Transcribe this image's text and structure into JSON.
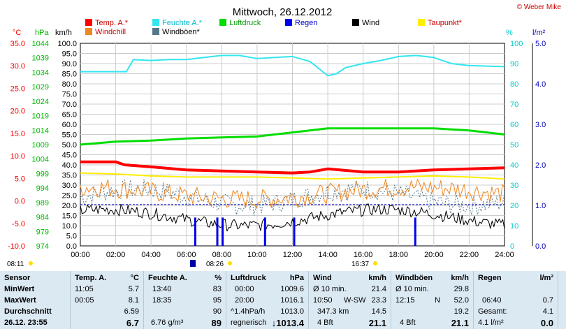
{
  "title": "Mittwoch, 26.12.2012",
  "copyright": "© Weber Mike",
  "colors": {
    "temp": "#ff0000",
    "humidity": "#33e6f0",
    "pressure": "#00dd00",
    "rain": "#0000ee",
    "wind": "#000000",
    "dewpoint": "#ffee00",
    "windchill": "#ee8822",
    "gusts": "#557788",
    "left_axis_temp": "#ff0000",
    "left_axis_hpa": "#00bb00",
    "right_axis": "#00cccc",
    "rain_axis": "#0000bb",
    "table_bg": "#dbe9f3"
  },
  "chart_data": {
    "type": "line",
    "x_ticks": [
      "00:00",
      "02:00",
      "04:00",
      "06:00",
      "08:00",
      "10:00",
      "12:00",
      "14:00",
      "16:00",
      "18:00",
      "20:00",
      "22:00",
      "24:00"
    ],
    "axes": {
      "temp_unit": "°C",
      "temp_ticks": [
        "35.0",
        "30.0",
        "25.0",
        "20.0",
        "15.0",
        "10.0",
        "5.0",
        "0.0",
        "-5.0",
        "-10.0"
      ],
      "hpa_unit": "hPa",
      "hpa_ticks": [
        "1044",
        "1039",
        "1034",
        "1029",
        "1024",
        "1019",
        "1014",
        "1009",
        "1004",
        "999",
        "994",
        "989",
        "984",
        "979",
        "974"
      ],
      "kmh_unit": "km/h",
      "kmh_ticks": [
        "100.0",
        "95.0",
        "90.0",
        "85.0",
        "80.0",
        "75.0",
        "70.0",
        "65.0",
        "60.0",
        "55.0",
        "50.0",
        "45.0",
        "40.0",
        "35.0",
        "30.0",
        "25.0",
        "20.0",
        "15.0",
        "10.0",
        "5.0",
        "0.0"
      ],
      "pct_unit": "%",
      "pct_ticks": [
        "100",
        "90",
        "80",
        "70",
        "60",
        "50",
        "40",
        "30",
        "20",
        "10",
        "0"
      ],
      "rain_unit": "l/m²",
      "rain_ticks": [
        "5.0",
        "4.0",
        "3.0",
        "2.0",
        "1.0",
        "0.0"
      ]
    },
    "legend": [
      {
        "key": "temp",
        "label": "Temp. A.*"
      },
      {
        "key": "humidity",
        "label": "Feuchte A.*"
      },
      {
        "key": "pressure",
        "label": "Luftdruck"
      },
      {
        "key": "rain",
        "label": "Regen"
      },
      {
        "key": "wind",
        "label": "Wind"
      },
      {
        "key": "dewpoint",
        "label": "Taupunkt*"
      },
      {
        "key": "windchill",
        "label": "Windchill"
      },
      {
        "key": "gusts",
        "label": "Windböen*"
      }
    ],
    "series": {
      "temp_kmh": {
        "x": [
          0,
          2,
          2.5,
          4,
          6,
          8,
          10,
          12,
          13,
          14,
          16,
          18,
          20,
          22,
          24
        ],
        "y": [
          41.5,
          41.5,
          40,
          39,
          37.5,
          37,
          36.5,
          36,
          36.5,
          38,
          36.5,
          36.5,
          37.5,
          38,
          38.5
        ]
      },
      "humidity_kmh": {
        "x": [
          0,
          2.6,
          3,
          4,
          5,
          6,
          7,
          8,
          9,
          10,
          11,
          12,
          13,
          14,
          14.5,
          15,
          16,
          17,
          18,
          19,
          20,
          21,
          22,
          24
        ],
        "y": [
          86,
          86,
          92,
          91.5,
          92,
          92,
          93,
          94,
          94,
          92.5,
          93,
          93.5,
          91,
          84,
          85,
          88,
          90,
          91.5,
          93.5,
          94,
          93,
          90,
          89,
          88.5
        ]
      },
      "pressure_kmh": {
        "x": [
          0,
          2,
          4,
          6,
          8,
          10,
          12,
          14,
          16,
          18,
          20,
          22,
          24
        ],
        "y": [
          50,
          51.5,
          52,
          53,
          53.5,
          54,
          56,
          58,
          58,
          58,
          58,
          57,
          55
        ]
      },
      "dewpoint_kmh": {
        "x": [
          0,
          2,
          4,
          6,
          8,
          10,
          12,
          14,
          16,
          18,
          20,
          22,
          24
        ],
        "y": [
          36,
          35.5,
          34.5,
          34,
          34,
          34,
          33.5,
          33,
          33.5,
          34,
          34.5,
          34,
          33
        ]
      },
      "rain_events": [
        6.5,
        7.75,
        8.05,
        10.45,
        12.1,
        18.95
      ]
    }
  },
  "sun": {
    "sunrise": "08:11",
    "sunset": "16:37",
    "moon": "08:26"
  },
  "table": {
    "labels": {
      "sensor": "Sensor",
      "min": "MinWert",
      "max": "MaxWert",
      "avg": "Durchschnitt",
      "now": "26.12. 23:55"
    },
    "temp": {
      "title": "Temp. A.",
      "unit": "°C",
      "min_t": "11:05",
      "min_v": "5.7",
      "max_t": "00:05",
      "max_v": "8.1",
      "avg": "6.59",
      "now": "6.7"
    },
    "hum": {
      "title": "Feuchte A.",
      "unit": "%",
      "min_t": "13:40",
      "min_v": "83",
      "max_t": "18:35",
      "max_v": "95",
      "avg": "90",
      "now_extra": "6.76 g/m³",
      "now": "89"
    },
    "press": {
      "title": "Luftdruck",
      "unit": "hPa",
      "min_t": "00:00",
      "min_v": "1009.6",
      "max_t": "20:00",
      "max_v": "1016.1",
      "avg_t": "^1.4hPa/h",
      "avg_v": "1013.0",
      "now_extra": "regnerisch",
      "now": "↓1013.4"
    },
    "wind": {
      "title": "Wind",
      "unit": "km/h",
      "min_t": "Ø 10 min.",
      "min_v": "21.4",
      "max_t": "10:50",
      "max_d": "W-SW",
      "max_v": "23.3",
      "avg_t": "347.3 km",
      "avg_v": "14.5",
      "now_extra": "4 Bft",
      "now": "21.1"
    },
    "gust": {
      "title": "Windböen",
      "unit": "km/h",
      "min_t": "Ø 10 min.",
      "min_v": "29.8",
      "max_t": "12:15",
      "max_d": "N",
      "max_v": "52.0",
      "avg_v": "19.2",
      "now_extra": "4 Bft",
      "now": "21.1"
    },
    "rain": {
      "title": "Regen",
      "unit": "l/m²",
      "max_t": "06:40",
      "max_v": "0.7",
      "avg_t": "Gesamt:",
      "avg_v": "4.1",
      "now_extra": "4.1 l/m²",
      "now": "0.0"
    }
  }
}
